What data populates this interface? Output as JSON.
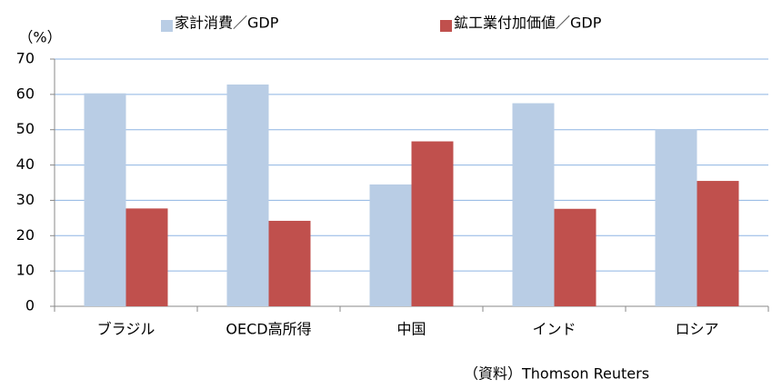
{
  "chart_data": {
    "type": "bar",
    "y_label": "（%）",
    "source": "（資料）Thomson Reuters",
    "categories": [
      "ブラジル",
      "OECD高所得",
      "中国",
      "インド",
      "ロシア"
    ],
    "series": [
      {
        "name": "家計消費／GDP",
        "color": "#b9cde5",
        "values": [
          60.3,
          62.8,
          34.5,
          57.5,
          50.0
        ]
      },
      {
        "name": "鉱工業付加価値／GDP",
        "color": "#c0504d",
        "values": [
          27.7,
          24.2,
          46.7,
          27.6,
          35.5
        ]
      }
    ],
    "ylim": [
      0,
      70
    ],
    "yticks": [
      0,
      10,
      20,
      30,
      40,
      50,
      60,
      70
    ],
    "grid": true,
    "legend": "top"
  }
}
